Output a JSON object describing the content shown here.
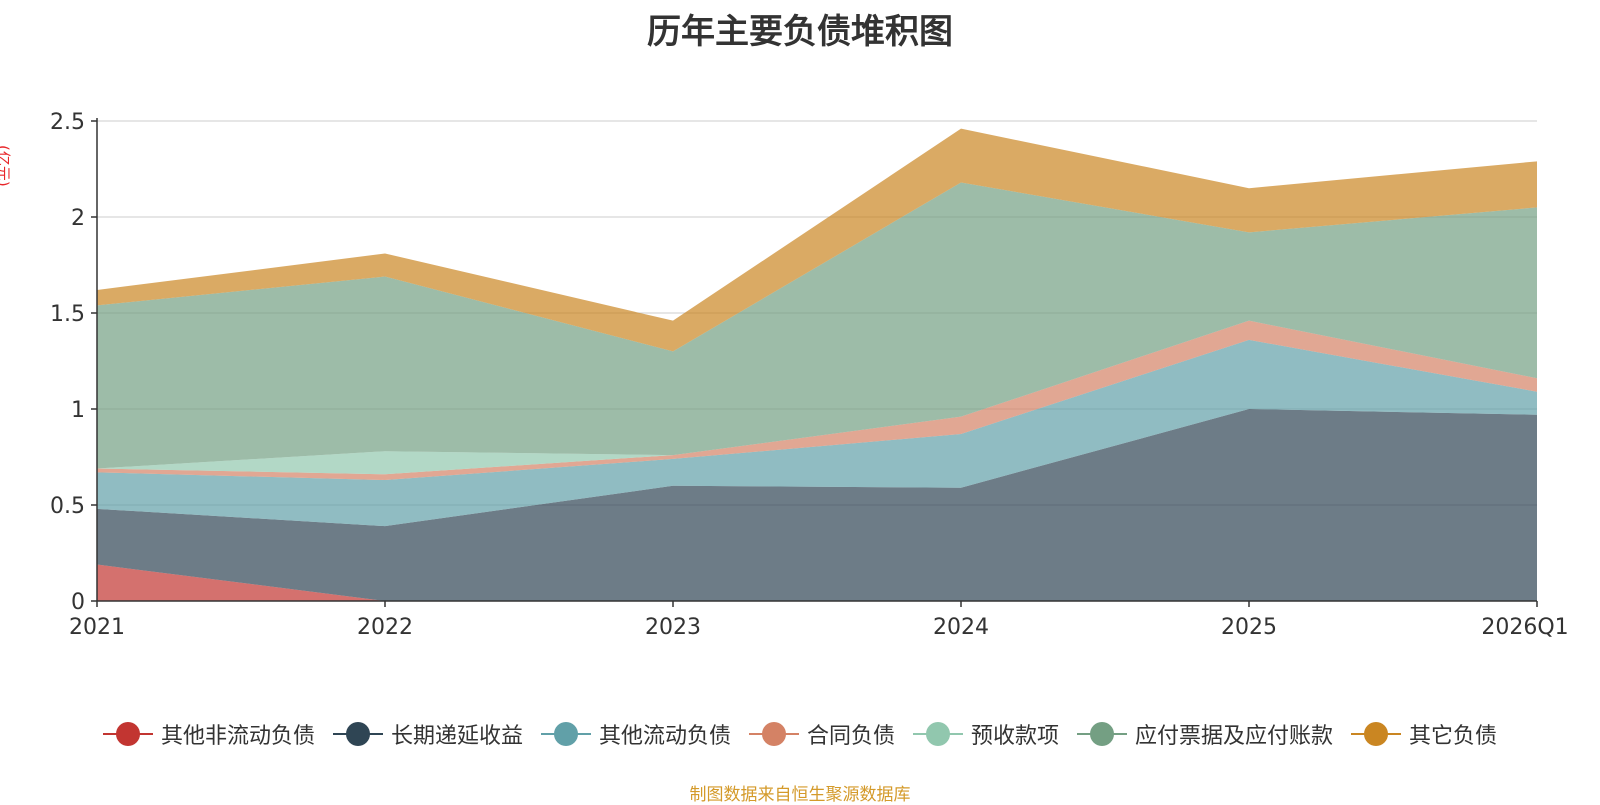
{
  "chart_data": {
    "type": "area",
    "stacked": true,
    "title": "历年主要负债堆积图",
    "unit": "(亿元)",
    "categories": [
      "2021",
      "2022",
      "2023",
      "2024",
      "2025",
      "2026Q1"
    ],
    "ylim": [
      0,
      2.5
    ],
    "yticks": [
      "0",
      "0.5",
      "1",
      "1.5",
      "2",
      "2.5"
    ],
    "ytick_values": [
      0,
      0.5,
      1,
      1.5,
      2,
      2.5
    ],
    "grid": true,
    "legend_position": "bottom",
    "series": [
      {
        "name": "其他非流动负债",
        "color": "#c23531",
        "values": [
          0.19,
          0.0,
          0.0,
          0.0,
          0.0,
          0.0
        ]
      },
      {
        "name": "长期递延收益",
        "color": "#2f4554",
        "values": [
          0.29,
          0.39,
          0.6,
          0.59,
          1.0,
          0.97
        ]
      },
      {
        "name": "其他流动负债",
        "color": "#61a0a8",
        "values": [
          0.19,
          0.24,
          0.14,
          0.28,
          0.36,
          0.12
        ]
      },
      {
        "name": "合同负债",
        "color": "#d48265",
        "values": [
          0.02,
          0.03,
          0.02,
          0.09,
          0.1,
          0.07
        ]
      },
      {
        "name": "预收款项",
        "color": "#91c7ae",
        "values": [
          0.0,
          0.12,
          0.0,
          0.0,
          0.0,
          0.0
        ]
      },
      {
        "name": "应付票据及应付账款",
        "color": "#749f83",
        "values": [
          0.85,
          0.91,
          0.54,
          1.22,
          0.46,
          0.89
        ]
      },
      {
        "name": "其它负债",
        "color": "#ca8622",
        "values": [
          0.08,
          0.12,
          0.16,
          0.28,
          0.23,
          0.24
        ]
      }
    ]
  },
  "source_note": "制图数据来自恒生聚源数据库"
}
